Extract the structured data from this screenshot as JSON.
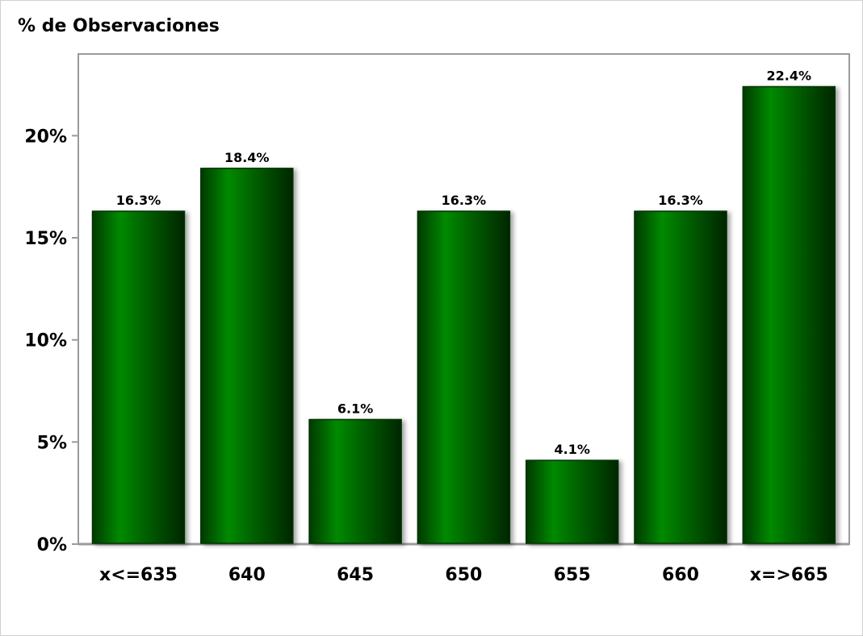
{
  "chart_data": {
    "type": "bar",
    "ylabel": "% de Observaciones",
    "xlabel": "",
    "categories": [
      "x<=635",
      "640",
      "645",
      "650",
      "655",
      "660",
      "x=>665"
    ],
    "values": [
      16.3,
      18.4,
      6.1,
      16.3,
      4.1,
      16.3,
      22.4
    ],
    "value_labels": [
      "16.3%",
      "18.4%",
      "6.1%",
      "16.3%",
      "4.1%",
      "16.3%",
      "22.4%"
    ],
    "ylim": [
      0,
      24
    ],
    "yticks": [
      0,
      5,
      10,
      15,
      20
    ],
    "ytick_labels": [
      "0%",
      "5%",
      "10%",
      "15%",
      "20%"
    ],
    "grid": false,
    "colors": {
      "bar_edge": "#003300",
      "bar_mid": "#008000",
      "bar_dark": "#002a00"
    }
  }
}
